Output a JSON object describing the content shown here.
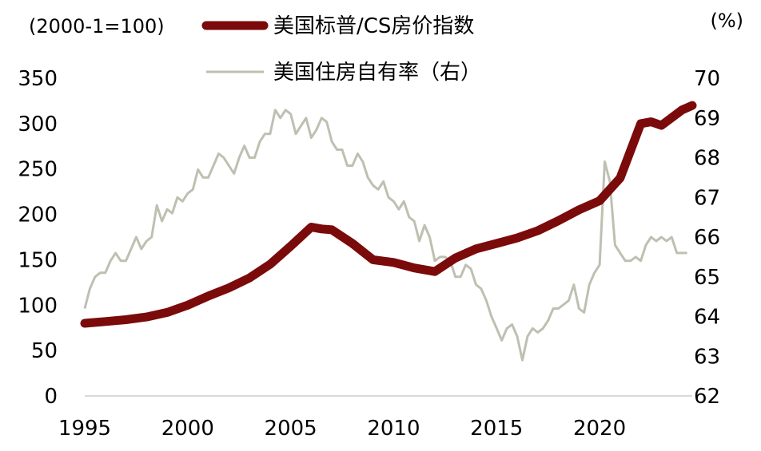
{
  "chart_data": {
    "type": "line",
    "left_axis": {
      "unit_label": "(2000-1=100)",
      "range": [
        0,
        350
      ],
      "ticks": [
        "0",
        "50",
        "100",
        "150",
        "200",
        "250",
        "300",
        "350"
      ]
    },
    "right_axis": {
      "unit_label": "(%)",
      "range": [
        62,
        70
      ],
      "ticks": [
        "62",
        "63",
        "64",
        "65",
        "66",
        "67",
        "68",
        "69",
        "70"
      ]
    },
    "x_axis": {
      "range": [
        1995,
        2024.5
      ],
      "ticks": [
        "1995",
        "2000",
        "2005",
        "2010",
        "2015",
        "2020"
      ]
    },
    "grid": false,
    "legend_position": "top",
    "series": [
      {
        "name": "美国标普/CS房价指数",
        "axis": "left",
        "color": "#7b0a0a",
        "x": [
          1995,
          1996,
          1997,
          1998,
          1999,
          2000,
          2001,
          2002,
          2003,
          2004,
          2005,
          2006,
          2006.5,
          2007,
          2008,
          2009,
          2010,
          2011,
          2012,
          2013,
          2014,
          2015,
          2016,
          2017,
          2018,
          2019,
          2020,
          2021,
          2022,
          2022.5,
          2023,
          2024,
          2024.5
        ],
        "y": [
          80,
          82,
          84,
          87,
          92,
          100,
          110,
          119,
          130,
          145,
          165,
          186,
          184,
          183,
          168,
          150,
          147,
          141,
          137,
          152,
          162,
          168,
          174,
          182,
          193,
          205,
          215,
          240,
          300,
          302,
          298,
          315,
          320
        ]
      },
      {
        "name": "美国住房自有率（右）",
        "axis": "right",
        "color": "#bfbfb2",
        "x": [
          1995,
          1995.25,
          1995.5,
          1995.75,
          1996,
          1996.25,
          1996.5,
          1996.75,
          1997,
          1997.25,
          1997.5,
          1997.75,
          1998,
          1998.25,
          1998.5,
          1998.75,
          1999,
          1999.25,
          1999.5,
          1999.75,
          2000,
          2000.25,
          2000.5,
          2000.75,
          2001,
          2001.25,
          2001.5,
          2001.75,
          2002,
          2002.25,
          2002.5,
          2002.75,
          2003,
          2003.25,
          2003.5,
          2003.75,
          2004,
          2004.25,
          2004.5,
          2004.75,
          2005,
          2005.25,
          2005.5,
          2005.75,
          2006,
          2006.25,
          2006.5,
          2006.75,
          2007,
          2007.25,
          2007.5,
          2007.75,
          2008,
          2008.25,
          2008.5,
          2008.75,
          2009,
          2009.25,
          2009.5,
          2009.75,
          2010,
          2010.25,
          2010.5,
          2010.75,
          2011,
          2011.25,
          2011.5,
          2011.75,
          2012,
          2012.25,
          2012.5,
          2012.75,
          2013,
          2013.25,
          2013.5,
          2013.75,
          2014,
          2014.25,
          2014.5,
          2014.75,
          2015,
          2015.25,
          2015.5,
          2015.75,
          2016,
          2016.25,
          2016.5,
          2016.75,
          2017,
          2017.25,
          2017.5,
          2017.75,
          2018,
          2018.25,
          2018.5,
          2018.75,
          2019,
          2019.25,
          2019.5,
          2019.75,
          2020,
          2020.25,
          2020.5,
          2020.75,
          2021,
          2021.25,
          2021.5,
          2021.75,
          2022,
          2022.25,
          2022.5,
          2022.75,
          2023,
          2023.25,
          2023.5,
          2023.75,
          2024,
          2024.25
        ],
        "y": [
          64.2,
          64.7,
          65.0,
          65.1,
          65.1,
          65.4,
          65.6,
          65.4,
          65.4,
          65.7,
          66.0,
          65.7,
          65.9,
          66.0,
          66.8,
          66.4,
          66.7,
          66.6,
          67.0,
          66.9,
          67.1,
          67.2,
          67.7,
          67.5,
          67.5,
          67.8,
          68.1,
          68.0,
          67.8,
          67.6,
          68.0,
          68.3,
          68.0,
          68.0,
          68.4,
          68.6,
          68.6,
          69.2,
          69.0,
          69.2,
          69.1,
          68.6,
          68.8,
          69.0,
          68.5,
          68.7,
          69.0,
          68.9,
          68.4,
          68.2,
          68.2,
          67.8,
          67.8,
          68.1,
          67.9,
          67.5,
          67.3,
          67.2,
          67.4,
          67.0,
          66.9,
          66.7,
          66.9,
          66.5,
          66.4,
          65.9,
          66.3,
          66.0,
          65.4,
          65.5,
          65.5,
          65.4,
          65.0,
          65.0,
          65.3,
          65.2,
          64.8,
          64.7,
          64.4,
          64.0,
          63.7,
          63.4,
          63.7,
          63.8,
          63.5,
          62.9,
          63.5,
          63.7,
          63.6,
          63.7,
          63.9,
          64.2,
          64.2,
          64.3,
          64.4,
          64.8,
          64.2,
          64.1,
          64.8,
          65.1,
          65.3,
          67.9,
          67.4,
          65.8,
          65.6,
          65.4,
          65.4,
          65.5,
          65.4,
          65.8,
          66.0,
          65.9,
          66.0,
          65.9,
          66.0,
          65.6,
          65.6,
          65.6
        ]
      }
    ]
  }
}
